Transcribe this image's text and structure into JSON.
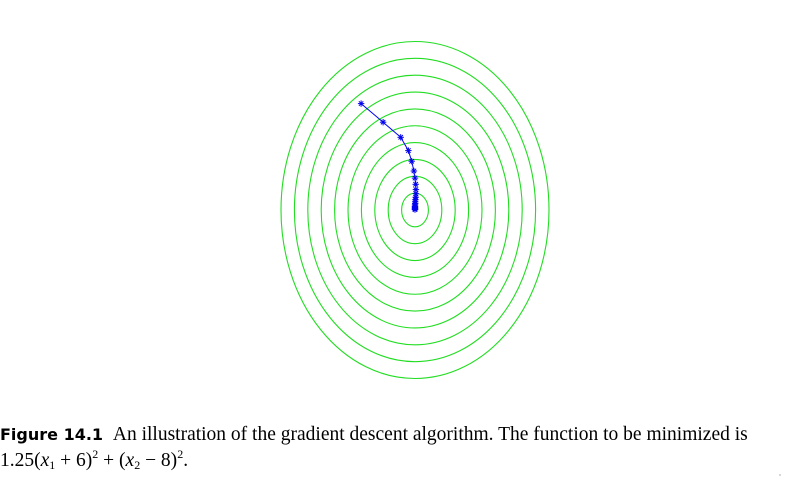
{
  "figure": {
    "label": "Figure 14.1",
    "caption_text": "An illustration of the gradient descent algorithm. The function to be minimized is",
    "formula": {
      "coef": "1.25(",
      "x1_var": "x",
      "x1_sub": "1",
      "x1_rest": " + 6)",
      "x1_exp": "2",
      "plus": " + (",
      "x2_var": "x",
      "x2_sub": "2",
      "x2_rest": " − 8)",
      "x2_exp": "2",
      "end": "."
    }
  },
  "chart_data": {
    "type": "contour",
    "function": "1.25(x1 + 6)^2 + (x2 - 8)^2",
    "minimum": [
      -6,
      8
    ],
    "contour_count": 10,
    "contour_radius_steps": [
      1,
      2,
      3,
      4,
      5,
      6,
      7,
      8,
      9,
      10
    ],
    "contour_color": "#22dd22",
    "path_color": "#0000ee",
    "path_marker": "asterisk",
    "descent_path": [
      [
        -8.45,
        14.0
      ],
      [
        -7.45,
        12.95
      ],
      [
        -6.65,
        12.1
      ],
      [
        -6.3,
        11.35
      ],
      [
        -6.15,
        10.75
      ],
      [
        -6.05,
        10.2
      ],
      [
        -6.0,
        9.8
      ],
      [
        -5.97,
        9.45
      ],
      [
        -5.96,
        9.15
      ],
      [
        -5.96,
        8.92
      ],
      [
        -5.97,
        8.72
      ],
      [
        -5.98,
        8.58
      ],
      [
        -5.99,
        8.46
      ],
      [
        -5.99,
        8.36
      ],
      [
        -6.0,
        8.28
      ],
      [
        -6.0,
        8.2
      ],
      [
        -6.0,
        8.14
      ],
      [
        -6.0,
        8.09
      ],
      [
        -6.0,
        8.05
      ],
      [
        -6.0,
        8.02
      ]
    ]
  }
}
